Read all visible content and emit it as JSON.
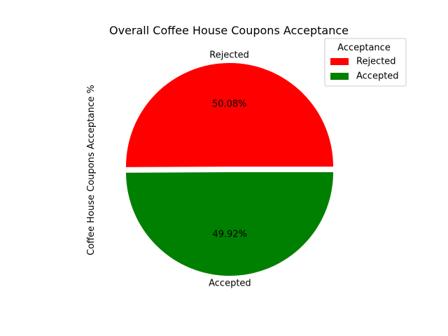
{
  "chart_data": {
    "type": "pie",
    "title": "Overall Coffee House Coupons Acceptance",
    "ylabel": "Coffee House Coupons Acceptance %",
    "slices": [
      {
        "label": "Rejected",
        "value": 50.08,
        "percent_label": "50.08%",
        "color": "#ff0000"
      },
      {
        "label": "Accepted",
        "value": 49.92,
        "percent_label": "49.92%",
        "color": "#008000"
      }
    ],
    "legend": {
      "title": "Acceptance",
      "placement": "top-right",
      "entries": [
        "Rejected",
        "Accepted"
      ]
    },
    "exploded": true,
    "start_angle_deg": 0
  }
}
